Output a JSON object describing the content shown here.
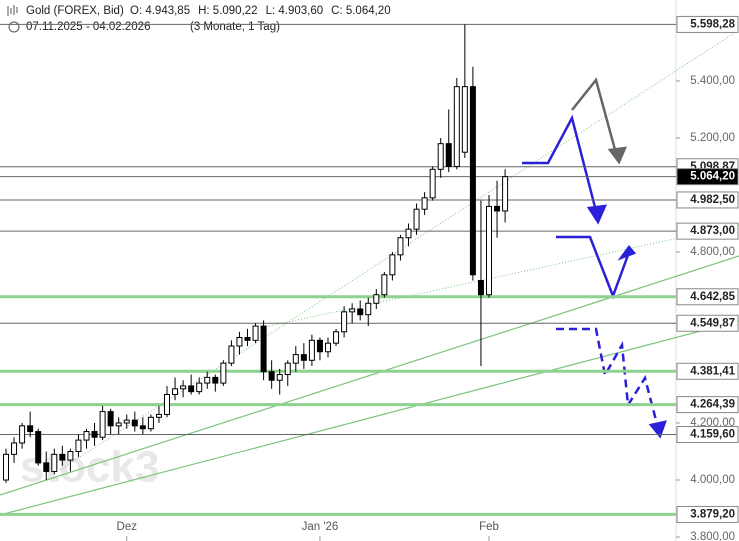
{
  "chart_data": {
    "type": "candlestick",
    "title": "Gold (FOREX, Bid)",
    "ohlc_labels": [
      "O: 4.943,85",
      "H: 5.090,22",
      "L: 4.903,60",
      "C: 5.064,20"
    ],
    "date_range": "07.11.2025 - 04.02.2026",
    "period": "(3 Monate, 1 Tag)",
    "watermark": "stock3",
    "categories": [
      null,
      null,
      null,
      null,
      null,
      null,
      null,
      null,
      null,
      null,
      null,
      null,
      null,
      null,
      null,
      "Dez",
      null,
      null,
      null,
      null,
      null,
      null,
      null,
      null,
      null,
      null,
      null,
      null,
      null,
      null,
      null,
      null,
      null,
      null,
      null,
      null,
      null,
      null,
      null,
      "Jan '26",
      null,
      null,
      null,
      null,
      null,
      null,
      null,
      null,
      null,
      null,
      null,
      null,
      null,
      null,
      null,
      null,
      null,
      null,
      null,
      null,
      "Feb",
      null,
      null
    ],
    "ohlc": [
      [
        4000,
        4110,
        3990,
        4090
      ],
      [
        4090,
        4150,
        4060,
        4130
      ],
      [
        4130,
        4200,
        4110,
        4190
      ],
      [
        4190,
        4240,
        4150,
        4170
      ],
      [
        4170,
        4180,
        4050,
        4060
      ],
      [
        4060,
        4100,
        4000,
        4030
      ],
      [
        4030,
        4110,
        4020,
        4090
      ],
      [
        4090,
        4120,
        4050,
        4070
      ],
      [
        4070,
        4110,
        4030,
        4100
      ],
      [
        4100,
        4160,
        4080,
        4140
      ],
      [
        4140,
        4180,
        4110,
        4170
      ],
      [
        4170,
        4200,
        4120,
        4150
      ],
      [
        4150,
        4260,
        4140,
        4240
      ],
      [
        4240,
        4250,
        4160,
        4190
      ],
      [
        4190,
        4220,
        4160,
        4200
      ],
      [
        4200,
        4230,
        4180,
        4210
      ],
      [
        4210,
        4240,
        4170,
        4190
      ],
      [
        4190,
        4220,
        4160,
        4180
      ],
      [
        4180,
        4230,
        4170,
        4220
      ],
      [
        4220,
        4260,
        4200,
        4230
      ],
      [
        4230,
        4330,
        4220,
        4300
      ],
      [
        4300,
        4360,
        4280,
        4320
      ],
      [
        4320,
        4350,
        4290,
        4330
      ],
      [
        4330,
        4370,
        4300,
        4310
      ],
      [
        4310,
        4360,
        4300,
        4340
      ],
      [
        4340,
        4380,
        4320,
        4360
      ],
      [
        4360,
        4370,
        4310,
        4340
      ],
      [
        4340,
        4420,
        4330,
        4410
      ],
      [
        4410,
        4490,
        4400,
        4470
      ],
      [
        4470,
        4520,
        4440,
        4500
      ],
      [
        4500,
        4530,
        4470,
        4490
      ],
      [
        4490,
        4550,
        4480,
        4540
      ],
      [
        4540,
        4560,
        4350,
        4380
      ],
      [
        4380,
        4420,
        4320,
        4350
      ],
      [
        4350,
        4390,
        4300,
        4370
      ],
      [
        4370,
        4420,
        4330,
        4410
      ],
      [
        4410,
        4470,
        4380,
        4440
      ],
      [
        4440,
        4480,
        4390,
        4420
      ],
      [
        4420,
        4510,
        4400,
        4490
      ],
      [
        4490,
        4500,
        4420,
        4450
      ],
      [
        4450,
        4500,
        4430,
        4480
      ],
      [
        4480,
        4530,
        4470,
        4520
      ],
      [
        4520,
        4610,
        4500,
        4590
      ],
      [
        4590,
        4620,
        4550,
        4600
      ],
      [
        4600,
        4630,
        4560,
        4580
      ],
      [
        4580,
        4640,
        4540,
        4620
      ],
      [
        4620,
        4670,
        4600,
        4650
      ],
      [
        4650,
        4730,
        4640,
        4720
      ],
      [
        4720,
        4800,
        4700,
        4790
      ],
      [
        4790,
        4860,
        4770,
        4850
      ],
      [
        4850,
        4900,
        4820,
        4880
      ],
      [
        4880,
        4970,
        4860,
        4950
      ],
      [
        4950,
        5010,
        4930,
        4990
      ],
      [
        4990,
        5100,
        4980,
        5090
      ],
      [
        5090,
        5200,
        5060,
        5180
      ],
      [
        5180,
        5300,
        5080,
        5100
      ],
      [
        5100,
        5410,
        5090,
        5380
      ],
      [
        5150,
        5598.28,
        5130,
        5380
      ],
      [
        5380,
        5450,
        4700,
        4720
      ],
      [
        4700,
        4980,
        4400,
        4650
      ],
      [
        4650,
        5000,
        4640,
        4960
      ],
      [
        4960,
        5050,
        4850,
        4943.85
      ],
      [
        4943.85,
        5090.22,
        4903.6,
        5064.2
      ]
    ],
    "up_color": "#ffffff",
    "down_color": "#000000",
    "ylim": [
      3786,
      5684
    ],
    "yticks": [
      {
        "value": 5400,
        "label": "5.400,00"
      },
      {
        "value": 5200,
        "label": "5.200,00"
      },
      {
        "value": 4800,
        "label": "4.800,00"
      },
      {
        "value": 4200,
        "label": "4.200,00"
      },
      {
        "value": 4000,
        "label": "4.000,00"
      },
      {
        "value": 3800,
        "label": "3.800,00"
      }
    ],
    "levels": [
      {
        "value": 5598.28,
        "label": "5.598,28",
        "color": "#666666",
        "box_color": "#ffffff"
      },
      {
        "value": 5098.87,
        "label": "5.098,87",
        "color": "#666666",
        "box_color": "#ffffff"
      },
      {
        "value": 5064.2,
        "label": "5.064,20",
        "color": "#666666",
        "box_color": "#000000"
      },
      {
        "value": 4982.5,
        "label": "4.982,50",
        "color": "#666666",
        "box_color": "#ffffff"
      },
      {
        "value": 4873,
        "label": "4.873,00",
        "color": "#666666",
        "box_color": "#ffffff"
      },
      {
        "value": 4642.85,
        "label": "4.642,85",
        "color": "#8fd18f",
        "box_color": "#ffffff"
      },
      {
        "value": 4549.87,
        "label": "4.549,87",
        "color": "#666666",
        "box_color": "#ffffff"
      },
      {
        "value": 4381.41,
        "label": "4.381,41",
        "color": "#8fd18f",
        "box_color": "#ffffff"
      },
      {
        "value": 4264.39,
        "label": "4.264,39",
        "color": "#8fd18f",
        "box_color": "#ffffff"
      },
      {
        "value": 4159.6,
        "label": "4.159,60",
        "color": "#666666",
        "box_color": "#ffffff"
      },
      {
        "value": 3879.2,
        "label": "3.879,20",
        "color": "#8fd18f",
        "box_color": "#ffffff"
      }
    ]
  }
}
